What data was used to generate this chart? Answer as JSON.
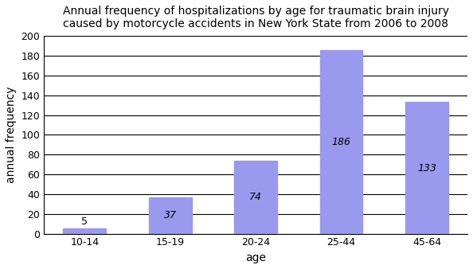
{
  "categories": [
    "10-14",
    "15-19",
    "20-24",
    "25-44",
    "45-64"
  ],
  "values": [
    5,
    37,
    74,
    186,
    133
  ],
  "bar_color": "#9999ee",
  "bar_edgecolor": "#9999ee",
  "title_line1": "Annual frequency of hospitalizations by age for traumatic brain injury",
  "title_line2": "caused by motorcycle accidents in New York State from 2006 to 2008",
  "xlabel": "age",
  "ylabel": "annual frequency",
  "ylim": [
    0,
    200
  ],
  "yticks": [
    0,
    20,
    40,
    60,
    80,
    100,
    120,
    140,
    160,
    180,
    200
  ],
  "title_fontsize": 10,
  "axis_label_fontsize": 10,
  "tick_fontsize": 9,
  "label_fontsize": 9,
  "background_color": "#ffffff",
  "grid_color": "#000000",
  "grid_linewidth": 0.8,
  "bar_width": 0.5
}
